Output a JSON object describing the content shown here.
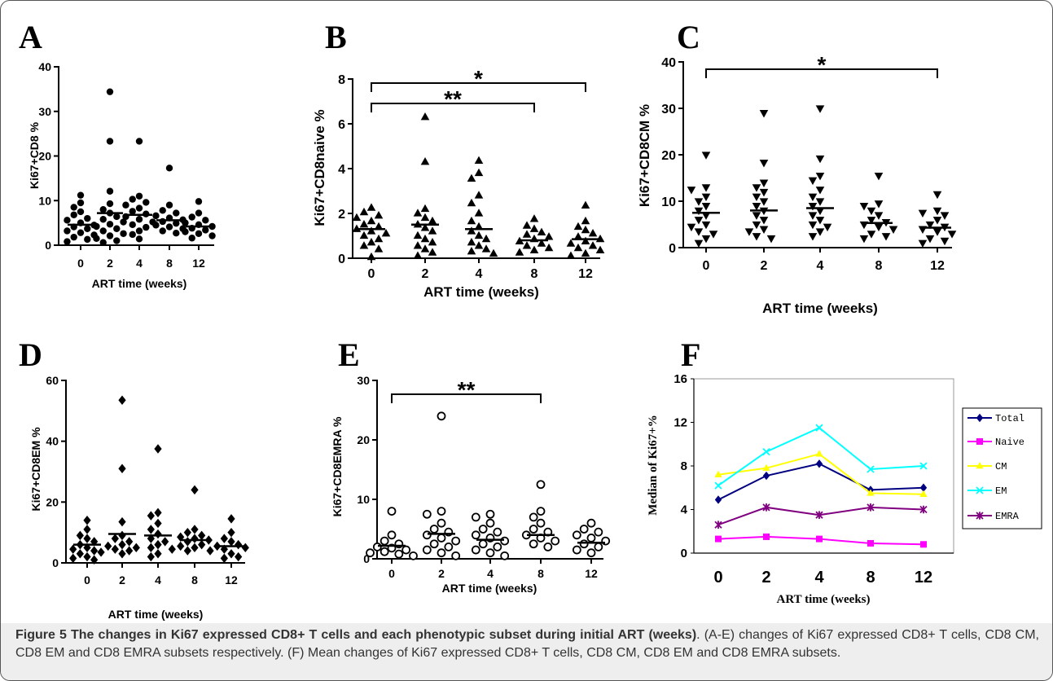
{
  "caption": {
    "title": "Figure 5 The changes in Ki67 expressed CD8+ T cells and each phenotypic subset during initial ART (weeks)",
    "body": ". (A-E) changes of Ki67 expressed CD8+ T cells, CD8 CM, CD8 EM and CD8 EMRA subsets respectively. (F) Mean changes of Ki67 expressed CD8+ T cells, CD8 CM, CD8 EM and CD8 EMRA subsets."
  },
  "chart_data": [
    {
      "panel_label": "A",
      "type": "scatter",
      "xlabel": "ART time (weeks)",
      "ylabel": "Ki67+CD8 %",
      "ylim": [
        0,
        40
      ],
      "yticks": [
        0,
        10,
        20,
        30,
        40
      ],
      "categories": [
        "0",
        "2",
        "4",
        "8",
        "12"
      ],
      "marker": "filled-circle",
      "groups": [
        {
          "category": "0",
          "values": [
            11.2,
            9.5,
            8.5,
            7.5,
            6.8,
            6.0,
            5.6,
            5.0,
            4.5,
            4.1,
            3.7,
            3.2,
            2.8,
            2.3,
            1.8,
            1.3,
            0.8
          ],
          "center_line": 4.6
        },
        {
          "category": "2",
          "values": [
            34.4,
            23.3,
            12.1,
            9.3,
            8.0,
            7.2,
            6.4,
            5.8,
            5.2,
            4.7,
            4.2,
            3.7,
            3.2,
            2.6,
            2.1,
            1.5,
            1.0,
            0.6
          ],
          "center_line": 7.2
        },
        {
          "category": "4",
          "values": [
            23.3,
            11.0,
            10.3,
            9.6,
            9.0,
            8.3,
            7.6,
            7.0,
            6.4,
            5.8,
            5.2,
            4.6,
            4.0,
            3.2,
            2.4,
            1.4
          ],
          "center_line": 6.8
        },
        {
          "category": "8",
          "values": [
            17.3,
            9.0,
            7.8,
            7.2,
            6.6,
            6.1,
            5.7,
            5.3,
            4.9,
            4.5,
            4.1,
            3.7,
            3.2,
            2.7
          ],
          "center_line": 5.6
        },
        {
          "category": "12",
          "values": [
            9.8,
            7.2,
            6.3,
            5.6,
            5.0,
            4.6,
            4.2,
            3.8,
            3.4,
            3.0,
            2.6,
            2.1,
            1.6
          ],
          "center_line": 4.2
        }
      ],
      "significance": []
    },
    {
      "panel_label": "B",
      "type": "scatter",
      "xlabel": "ART time (weeks)",
      "ylabel": "Ki67+CD8naive %",
      "ylim": [
        0,
        8
      ],
      "yticks": [
        0,
        2,
        4,
        6,
        8
      ],
      "categories": [
        "0",
        "2",
        "4",
        "8",
        "12"
      ],
      "marker": "filled-triangle",
      "groups": [
        {
          "category": "0",
          "values": [
            2.25,
            2.05,
            1.9,
            1.8,
            1.65,
            1.5,
            1.4,
            1.3,
            1.2,
            1.1,
            1.0,
            0.85,
            0.7,
            0.55,
            0.4,
            0.05
          ],
          "center_line": 1.3
        },
        {
          "category": "2",
          "values": [
            6.3,
            4.3,
            2.2,
            2.0,
            1.8,
            1.65,
            1.5,
            1.35,
            1.2,
            1.0,
            0.85,
            0.7,
            0.55,
            0.4,
            0.25,
            0.1
          ],
          "center_line": 1.5
        },
        {
          "category": "4",
          "values": [
            4.35,
            3.8,
            3.55,
            2.8,
            2.45,
            2.0,
            1.65,
            1.4,
            1.2,
            1.0,
            0.85,
            0.7,
            0.55,
            0.4,
            0.3,
            0.2
          ],
          "center_line": 1.3
        },
        {
          "category": "8",
          "values": [
            1.75,
            1.45,
            1.3,
            1.15,
            1.05,
            0.95,
            0.85,
            0.75,
            0.65,
            0.55,
            0.45,
            0.35,
            0.25
          ],
          "center_line": 0.8
        },
        {
          "category": "12",
          "values": [
            2.35,
            1.65,
            1.4,
            1.25,
            1.1,
            0.95,
            0.85,
            0.75,
            0.65,
            0.55,
            0.45,
            0.35,
            0.2,
            0.1
          ],
          "center_line": 0.85
        }
      ],
      "significance": [
        {
          "from": "0",
          "to": "12",
          "label": "*"
        },
        {
          "from": "0",
          "to": "8",
          "label": "**"
        }
      ]
    },
    {
      "panel_label": "C",
      "type": "scatter",
      "xlabel": "ART time (weeks)",
      "ylabel": "Ki67+CD8CM %",
      "ylim": [
        0,
        40
      ],
      "yticks": [
        0,
        10,
        20,
        30,
        40
      ],
      "categories": [
        "0",
        "2",
        "4",
        "8",
        "12"
      ],
      "marker": "filled-inverted-triangle",
      "groups": [
        {
          "category": "0",
          "values": [
            20.0,
            13.0,
            12.5,
            11.0,
            10.0,
            9.0,
            8.0,
            7.0,
            6.0,
            5.0,
            4.5,
            3.5,
            3.0,
            2.0,
            1.0
          ],
          "center_line": 7.5
        },
        {
          "category": "2",
          "values": [
            29.0,
            18.3,
            14.0,
            13.0,
            12.0,
            11.0,
            10.0,
            9.0,
            8.0,
            7.0,
            6.0,
            5.0,
            4.0,
            3.5,
            2.5,
            2.0
          ],
          "center_line": 8.0
        },
        {
          "category": "4",
          "values": [
            30.0,
            19.2,
            15.5,
            14.5,
            12.5,
            11.0,
            10.0,
            9.0,
            8.0,
            7.0,
            6.0,
            5.0,
            4.5,
            3.5,
            2.5
          ],
          "center_line": 8.5
        },
        {
          "category": "8",
          "values": [
            15.5,
            9.5,
            9.0,
            8.0,
            7.0,
            6.0,
            5.5,
            5.0,
            4.5,
            4.0,
            3.0,
            2.5,
            2.0
          ],
          "center_line": 5.3
        },
        {
          "category": "12",
          "values": [
            11.5,
            8.0,
            7.5,
            7.0,
            6.0,
            5.0,
            4.5,
            4.0,
            3.5,
            3.0,
            2.0,
            1.5,
            1.0
          ],
          "center_line": 4.3
        }
      ],
      "significance": [
        {
          "from": "0",
          "to": "12",
          "label": "*"
        }
      ]
    },
    {
      "panel_label": "D",
      "type": "scatter",
      "xlabel": "ART time (weeks)",
      "ylabel": "Ki67+CD8EM %",
      "ylim": [
        0,
        60
      ],
      "yticks": [
        0,
        20,
        40,
        60
      ],
      "categories": [
        "0",
        "2",
        "4",
        "8",
        "12"
      ],
      "marker": "filled-diamond",
      "groups": [
        {
          "category": "0",
          "values": [
            14.0,
            11.0,
            9.0,
            8.0,
            7.0,
            6.0,
            5.0,
            4.5,
            4.0,
            3.0,
            2.0,
            1.5,
            1.0
          ],
          "center_line": 6.0
        },
        {
          "category": "2",
          "values": [
            53.5,
            31.0,
            13.5,
            9.0,
            8.0,
            7.0,
            6.0,
            5.5,
            5.0,
            4.5,
            4.0,
            3.5,
            3.0
          ],
          "center_line": 9.5
        },
        {
          "category": "4",
          "values": [
            37.5,
            16.5,
            15.5,
            13.0,
            11.0,
            9.5,
            8.0,
            7.0,
            6.0,
            5.0,
            4.5,
            3.0,
            2.0
          ],
          "center_line": 9.0
        },
        {
          "category": "8",
          "values": [
            24.0,
            11.0,
            10.0,
            9.0,
            8.5,
            8.0,
            7.5,
            7.0,
            6.0,
            5.5,
            5.0,
            4.0
          ],
          "center_line": 7.5
        },
        {
          "category": "12",
          "values": [
            14.5,
            10.0,
            8.0,
            7.0,
            6.0,
            5.5,
            5.0,
            4.5,
            4.0,
            3.0,
            2.0,
            1.5
          ],
          "center_line": 5.5
        }
      ],
      "significance": []
    },
    {
      "panel_label": "E",
      "type": "scatter",
      "xlabel": "ART time (weeks)",
      "ylabel": "Ki67+CD8EMRA %",
      "ylim": [
        0,
        30
      ],
      "yticks": [
        0,
        10,
        20,
        30
      ],
      "categories": [
        "0",
        "2",
        "4",
        "8",
        "12"
      ],
      "marker": "open-circle",
      "groups": [
        {
          "category": "0",
          "values": [
            8.0,
            4.0,
            3.0,
            2.5,
            2.0,
            1.8,
            1.5,
            1.2,
            1.0,
            0.8,
            0.5
          ],
          "center_line": 2.2
        },
        {
          "category": "2",
          "values": [
            24.0,
            8.0,
            7.5,
            6.0,
            5.0,
            4.5,
            4.0,
            3.5,
            3.0,
            2.5,
            2.0,
            1.5,
            1.0,
            0.5
          ],
          "center_line": 4.2
        },
        {
          "category": "4",
          "values": [
            7.5,
            7.0,
            6.0,
            5.0,
            4.5,
            4.0,
            3.5,
            3.0,
            2.5,
            2.0,
            1.5,
            1.0,
            0.5
          ],
          "center_line": 3.2
        },
        {
          "category": "8",
          "values": [
            12.5,
            8.0,
            7.0,
            6.0,
            5.0,
            4.5,
            4.0,
            3.5,
            3.0,
            2.5,
            2.0
          ],
          "center_line": 4.0
        },
        {
          "category": "12",
          "values": [
            6.0,
            5.0,
            4.5,
            4.0,
            3.5,
            3.0,
            2.5,
            2.0,
            1.5,
            1.0
          ],
          "center_line": 2.7
        }
      ],
      "significance": [
        {
          "from": "0",
          "to": "8",
          "label": "**"
        }
      ]
    },
    {
      "panel_label": "F",
      "type": "line",
      "xlabel": "ART time (weeks)",
      "ylabel": "Median of Ki67+%",
      "x": [
        "0",
        "2",
        "4",
        "8",
        "12"
      ],
      "ylim": [
        0,
        16
      ],
      "yticks": [
        0,
        4,
        8,
        12,
        16
      ],
      "legend": "right",
      "series": [
        {
          "name": "Total",
          "values": [
            4.9,
            7.1,
            8.2,
            5.8,
            6.0
          ],
          "color": "#000080",
          "marker": "diamond"
        },
        {
          "name": "Naive",
          "values": [
            1.3,
            1.5,
            1.3,
            0.9,
            0.8
          ],
          "color": "#FF00FF",
          "marker": "square"
        },
        {
          "name": "CM",
          "values": [
            7.2,
            7.8,
            9.1,
            5.5,
            5.4
          ],
          "color": "#FFFF00",
          "marker": "triangle"
        },
        {
          "name": "EM",
          "values": [
            6.2,
            9.3,
            11.5,
            7.7,
            8.0
          ],
          "color": "#00FFFF",
          "marker": "x"
        },
        {
          "name": "EMRA",
          "values": [
            2.6,
            4.2,
            3.5,
            4.2,
            4.0
          ],
          "color": "#800080",
          "marker": "asterisk"
        }
      ]
    }
  ]
}
